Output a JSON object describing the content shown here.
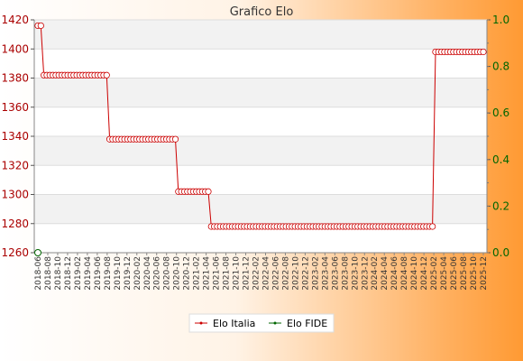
{
  "chart_data": {
    "type": "line",
    "title": "Grafico Elo",
    "xlabel": "",
    "ylabel": "",
    "y_left": {
      "min": 1260,
      "max": 1420,
      "ticks": [
        1260,
        1280,
        1300,
        1320,
        1340,
        1360,
        1380,
        1400,
        1420
      ]
    },
    "y_right": {
      "min": 0.0,
      "max": 1.0,
      "ticks": [
        0.0,
        0.2,
        0.4,
        0.6,
        0.8,
        1.0
      ]
    },
    "grid": true,
    "legend_position": "bottom-center",
    "x_tick_labels": [
      "2018-06",
      "2018-08",
      "2018-10",
      "2018-12",
      "2019-02",
      "2019-04",
      "2019-06",
      "2019-08",
      "2019-10",
      "2019-12",
      "2020-02",
      "2020-04",
      "2020-06",
      "2020-08",
      "2020-10",
      "2020-12",
      "2021-02",
      "2021-04",
      "2021-06",
      "2021-08",
      "2021-10",
      "2021-12",
      "2022-02",
      "2022-04",
      "2022-06",
      "2022-08",
      "2022-10",
      "2022-12",
      "2023-02",
      "2023-04",
      "2023-06",
      "2023-08",
      "2023-10",
      "2023-12",
      "2024-02",
      "2024-04",
      "2024-06",
      "2024-08",
      "2024-10",
      "2024-12",
      "2025-02",
      "2025-04",
      "2025-06",
      "2025-08",
      "2025-10",
      "2025-12"
    ],
    "series": [
      {
        "name": "Elo Italia",
        "color": "#cc0000",
        "axis": "left",
        "segments": [
          {
            "from_index": 0,
            "to_index": 2,
            "value": 1416
          },
          {
            "from_index": 2,
            "to_index": 24,
            "value": 1382
          },
          {
            "from_index": 24,
            "to_index": 47,
            "value": 1338
          },
          {
            "from_index": 47,
            "to_index": 58,
            "value": 1302
          },
          {
            "from_index": 58,
            "to_index": 132,
            "value": 1278
          },
          {
            "from_index": 133,
            "to_index": 149,
            "value": 1398
          }
        ],
        "point_count": 150
      },
      {
        "name": "Elo FIDE",
        "color": "#006600",
        "axis": "right",
        "values": [
          0.0
        ]
      }
    ]
  }
}
